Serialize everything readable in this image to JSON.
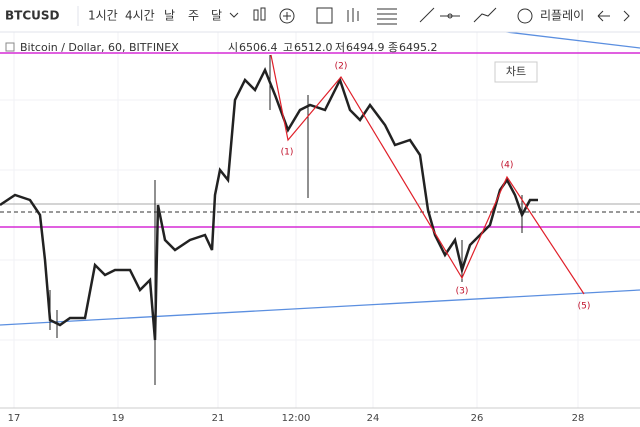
{
  "toolbar": {
    "symbol": "BTCUSD",
    "intervals": [
      "1시간",
      "4시간",
      "날",
      "주",
      "달"
    ],
    "replay": "리플레이"
  },
  "legend": {
    "title": "Bitcoin / Dollar, 60, BITFINEX",
    "fields": [
      {
        "label": "시",
        "value": "6506.4"
      },
      {
        "label": "고",
        "value": "6512.0"
      },
      {
        "label": "저",
        "value": "6494.9"
      },
      {
        "label": "종",
        "value": "6495.2"
      }
    ]
  },
  "chart_button": "차트",
  "waves": [
    "(1)",
    "(2)",
    "(3)",
    "(4)",
    "(5)"
  ],
  "x_axis": [
    "17",
    "19",
    "21",
    "12:00",
    "24",
    "26",
    "28"
  ]
}
